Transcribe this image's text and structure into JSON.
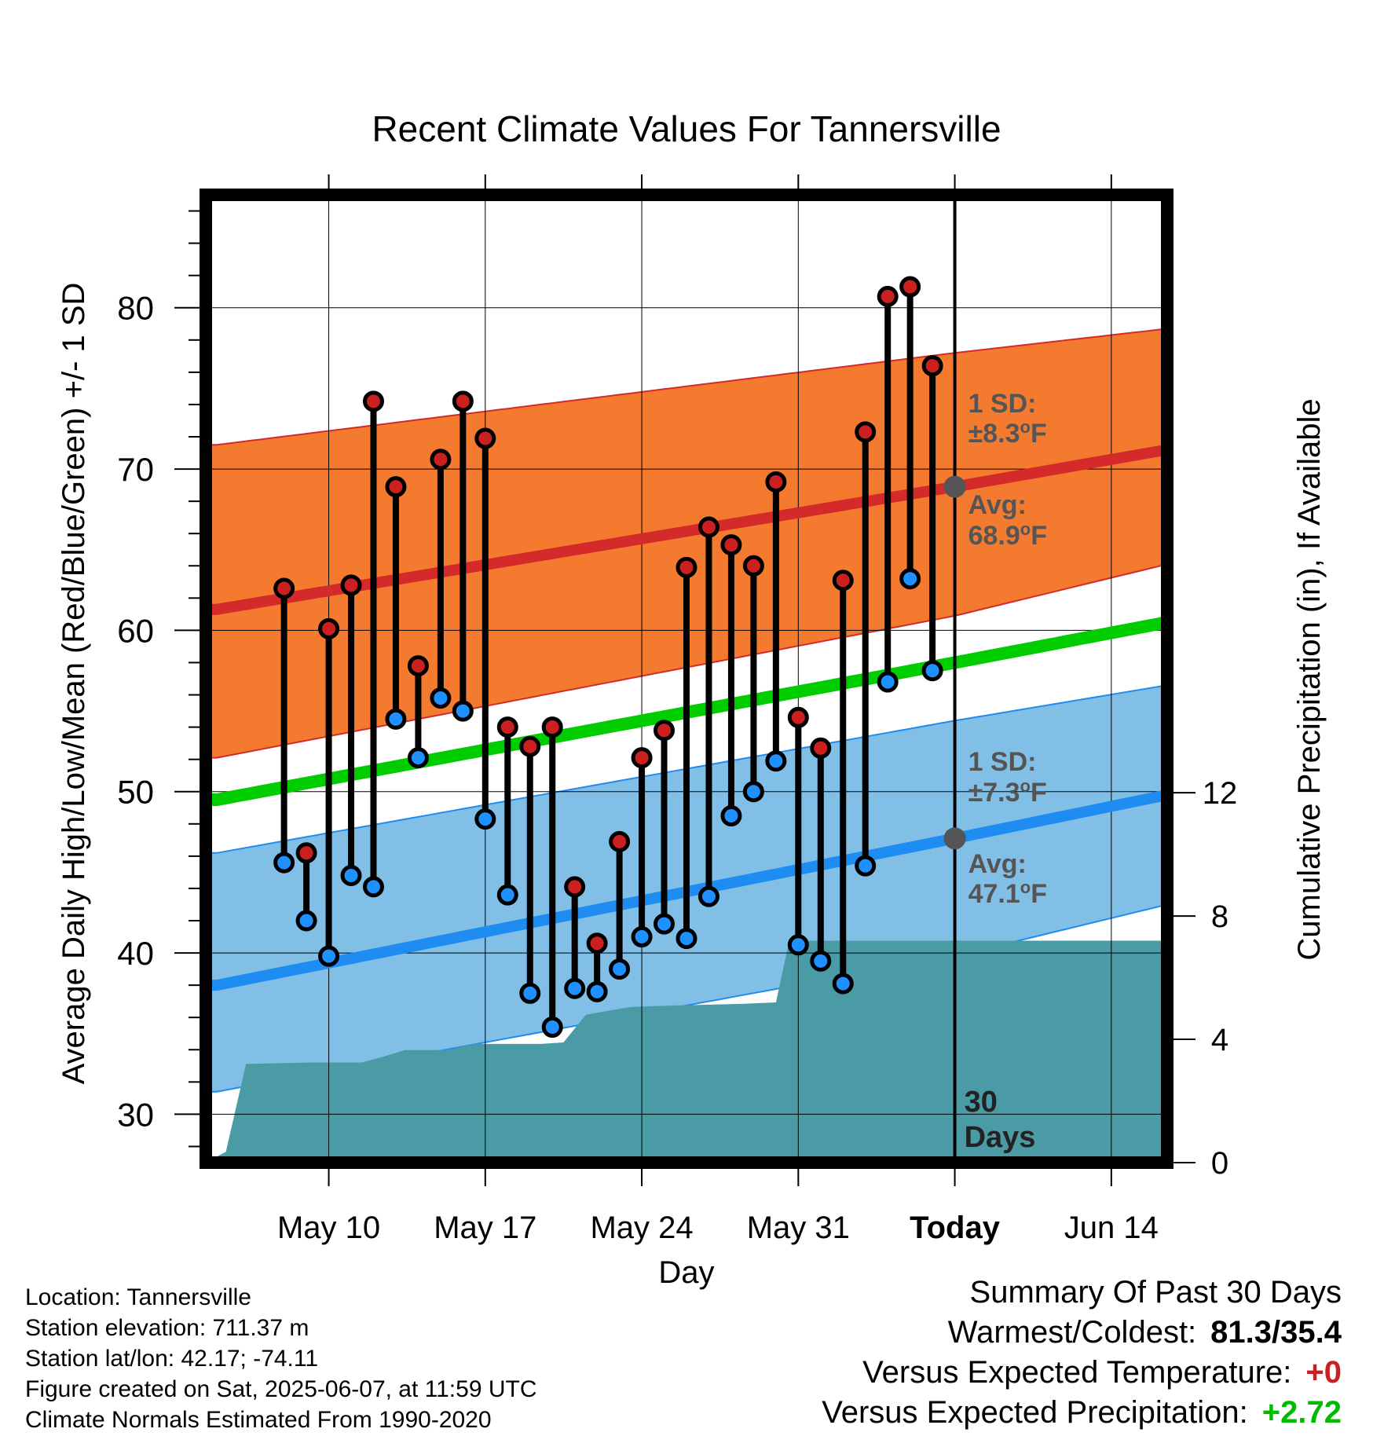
{
  "chart_data": {
    "type": "line",
    "title": "Recent Climate Values For Tannersville",
    "xlabel": "Day",
    "ylabel_left": "Average Daily High/Low/Mean (Red/Blue/Green) +/- 1 SD",
    "ylabel_right": "Cumulative Precipitation (in), If Available",
    "x_range_days": [
      -33.5,
      9.5
    ],
    "ylim_left": [
      27,
      87
    ],
    "ylim_right": [
      0,
      31.4
    ],
    "left_major_ticks": [
      30,
      40,
      50,
      60,
      70,
      80
    ],
    "right_ticks": [
      0,
      4,
      8,
      12
    ],
    "x_ticks": [
      {
        "day": -28,
        "label": "May 10"
      },
      {
        "day": -21,
        "label": "May 17"
      },
      {
        "day": -14,
        "label": "May 24"
      },
      {
        "day": -7,
        "label": "May 31"
      },
      {
        "day": 0,
        "label": "Today"
      },
      {
        "day": 7,
        "label": "Jun 14"
      }
    ],
    "grid": true,
    "normals": {
      "x_days": [
        -33,
        0,
        9.5
      ],
      "avg_high": [
        61.3,
        68.9,
        71.2
      ],
      "high_sd_upper": [
        71.5,
        77.2,
        78.7
      ],
      "high_sd_lower": [
        52.1,
        60.9,
        64.1
      ],
      "avg_low": [
        38.0,
        47.1,
        49.8
      ],
      "low_sd_upper": [
        46.2,
        54.4,
        56.6
      ],
      "low_sd_lower": [
        31.4,
        39.8,
        43.0
      ],
      "avg_mean": [
        49.5,
        58.0,
        60.5
      ]
    },
    "observed": {
      "day_offsets": [
        -30,
        -29,
        -28,
        -27,
        -26,
        -25,
        -24,
        -23,
        -22,
        -21,
        -20,
        -19,
        -18,
        -17,
        -16,
        -15,
        -14,
        -13,
        -12,
        -11,
        -10,
        -9,
        -8,
        -7,
        -6,
        -5,
        -4,
        -3,
        -2,
        -1
      ],
      "highs": [
        62.6,
        46.2,
        60.1,
        62.8,
        74.2,
        68.9,
        57.8,
        70.6,
        74.2,
        71.9,
        54.0,
        52.8,
        54.0,
        44.1,
        40.6,
        46.9,
        52.1,
        53.8,
        63.9,
        66.4,
        65.3,
        64.0,
        69.2,
        54.6,
        52.7,
        63.1,
        72.3,
        80.7,
        81.3,
        76.4
      ],
      "lows": [
        45.6,
        42.0,
        39.8,
        44.8,
        44.1,
        54.5,
        52.1,
        55.8,
        55.0,
        48.3,
        43.6,
        37.5,
        35.4,
        37.8,
        37.6,
        39.0,
        41.0,
        41.8,
        40.9,
        43.5,
        48.5,
        50.0,
        51.9,
        40.5,
        39.5,
        38.1,
        45.4,
        56.8,
        63.2,
        57.5
      ]
    },
    "precipitation": {
      "x_days": [
        -33.5,
        -32.6,
        -31.7,
        -28.7,
        -26.5,
        -25.5,
        -24.6,
        -22.7,
        -21.5,
        -18.5,
        -17.5,
        -16.5,
        -14.5,
        -12.5,
        -9.5,
        -8.0,
        -7.4,
        -6.2,
        -4.0,
        -2.0,
        0.0,
        9.5
      ],
      "cumulative_in": [
        0.0,
        0.35,
        3.2,
        3.25,
        3.25,
        3.45,
        3.65,
        3.65,
        3.85,
        3.85,
        3.9,
        4.8,
        5.05,
        5.1,
        5.15,
        5.2,
        7.2,
        7.2,
        7.2,
        7.2,
        7.2,
        7.2
      ]
    },
    "annotations": {
      "high_sd": "1 SD:",
      "high_sd_value": "±8.3",
      "high_avg": "Avg:",
      "high_avg_value": "68.9",
      "low_sd": "1 SD:",
      "low_sd_value": "±7.3",
      "low_avg": "Avg:",
      "low_avg_value": "47.1",
      "degree": "o",
      "unit": "F",
      "days_number": "30",
      "days_word": "Days"
    },
    "colors": {
      "high_band": "#F47A30",
      "high_line": "#D42A2A",
      "low_band": "#82BFE6",
      "low_line": "#1E8CF0",
      "mean_line": "#00CC00",
      "precip": "#4A9BA5",
      "high_dot": "#CC2020",
      "low_dot": "#1E90FF",
      "annotation": "#555555"
    }
  },
  "info": {
    "location": "Location: Tannersville",
    "elevation": "Station elevation: 711.37 m",
    "latlon": "Station lat/lon: 42.17; -74.11",
    "created": "Figure created on Sat, 2025-06-07, at 11:59 UTC",
    "normals": "Climate Normals Estimated From 1990-2020"
  },
  "summary": {
    "title": "Summary Of Past 30 Days",
    "warm_cold_label": "Warmest/Coldest:",
    "warm_cold_value": "81.3/35.4",
    "temp_label": "Versus Expected Temperature:",
    "temp_value": "+0",
    "temp_color": "#CC2020",
    "precip_label": "Versus Expected Precipitation:",
    "precip_value": "+2.72",
    "precip_color": "#00BB00"
  }
}
